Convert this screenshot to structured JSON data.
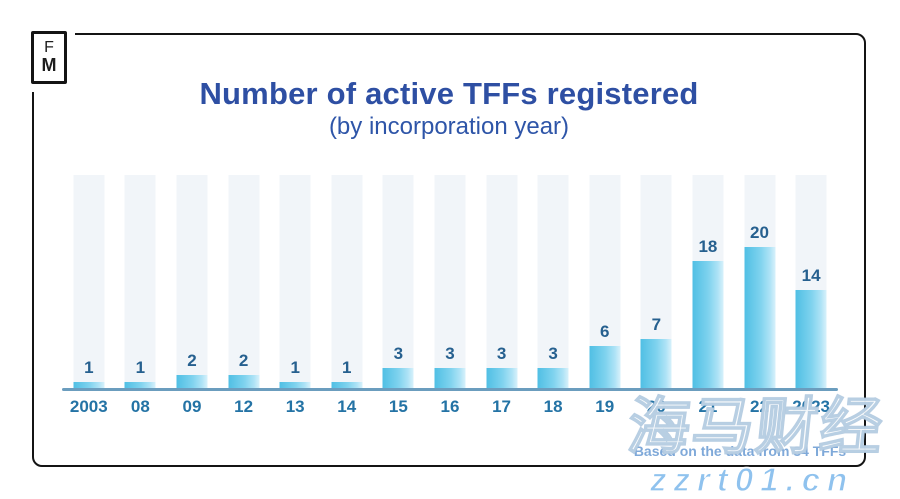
{
  "logo": {
    "line1": "F",
    "line2": "M"
  },
  "header": {
    "title": "Number of active TFFs registered",
    "subtitle": "(by incorporation year)"
  },
  "footnote": "Based on the data from 84 TFFs",
  "watermark": {
    "cjk": "海马财经",
    "url": "zzrt01.cn"
  },
  "colors": {
    "title_blue": "#2E4FA3",
    "subtitle_blue": "#2E55A8",
    "bar_gradient_start": "#50BFE4",
    "bar_gradient_end": "#D8F1FB",
    "bar_background_column": "#F1F5F9",
    "axis_line": "#6B9DBE",
    "x_label": "#2473A5",
    "value_label": "#26608F",
    "footnote_text": "#7FA9D9",
    "watermark_url_blue": "#8FC2EE",
    "card_border": "#141414"
  },
  "chart_data": {
    "type": "bar",
    "categories": [
      "2003",
      "08",
      "09",
      "12",
      "13",
      "14",
      "15",
      "16",
      "17",
      "18",
      "19",
      "20",
      "21",
      "22",
      "2023"
    ],
    "values": [
      1,
      1,
      2,
      2,
      1,
      1,
      3,
      3,
      3,
      3,
      6,
      7,
      18,
      20,
      14
    ],
    "title": "Number of active TFFs registered",
    "subtitle": "(by incorporation year)",
    "xlabel": "",
    "ylabel": "",
    "ylim": [
      0,
      30
    ],
    "grid": false,
    "legend": false,
    "data_labels": true,
    "annotation": "Based on the data from 84 TFFs"
  }
}
